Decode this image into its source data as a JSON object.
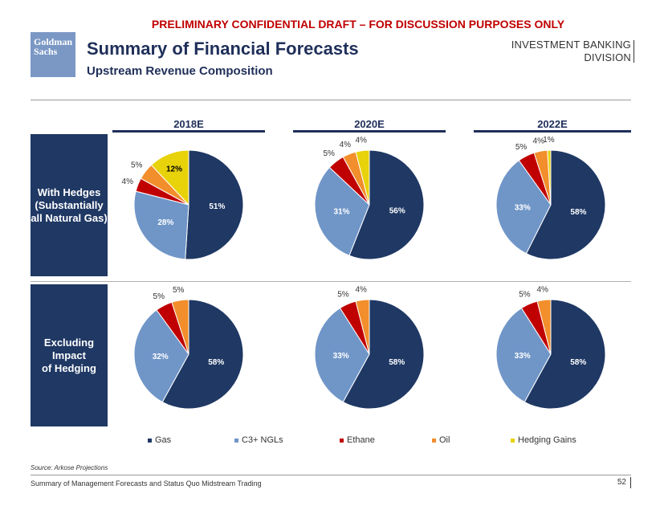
{
  "header": {
    "draft_notice": "PRELIMINARY CONFIDENTIAL DRAFT – FOR DISCUSSION PURPOSES ONLY",
    "logo_line1": "Goldman",
    "logo_line2": "Sachs",
    "title": "Summary of Financial Forecasts",
    "subtitle": "Upstream Revenue Composition",
    "division_line1": "INVESTMENT BANKING",
    "division_line2": "DIVISION"
  },
  "rows": {
    "hedged_l1": "With Hedges",
    "hedged_l2": "(Substantially",
    "hedged_l3": "all Natural Gas)",
    "unhedged_l1": "Excluding",
    "unhedged_l2": "Impact",
    "unhedged_l3": "of Hedging"
  },
  "colors": {
    "Gas": "#1f3864",
    "C3+ NGLs": "#7096c8",
    "Ethane": "#c00000",
    "Oil": "#f28e2b",
    "Hedging Gains": "#e8d20a"
  },
  "chart_data": {
    "type": "pie",
    "title": "Upstream Revenue Composition",
    "categories": [
      "Gas",
      "C3+ NGLs",
      "Ethane",
      "Oil",
      "Hedging Gains"
    ],
    "columns": [
      "2018E",
      "2020E",
      "2022E"
    ],
    "rows": [
      "With Hedges (Substantially all Natural Gas)",
      "Excluding Impact of Hedging"
    ],
    "legend_position": "bottom",
    "pies": [
      {
        "row": "hedged",
        "year": "2018E",
        "values": [
          51,
          28,
          4,
          5,
          12
        ],
        "labels": [
          "51%",
          "28%",
          "4%",
          "5%",
          "12%"
        ]
      },
      {
        "row": "hedged",
        "year": "2020E",
        "values": [
          56,
          31,
          5,
          4,
          4
        ],
        "labels": [
          "56%",
          "31%",
          "5%",
          "4%",
          "4%"
        ]
      },
      {
        "row": "hedged",
        "year": "2022E",
        "values": [
          58,
          33,
          5,
          4,
          1
        ],
        "labels": [
          "58%",
          "33%",
          "5%",
          "4%",
          "1%"
        ]
      },
      {
        "row": "unhedged",
        "year": "2018E",
        "values": [
          58,
          32,
          5,
          5,
          0
        ],
        "labels": [
          "58%",
          "32%",
          "5%",
          "5%",
          ""
        ]
      },
      {
        "row": "unhedged",
        "year": "2020E",
        "values": [
          58,
          33,
          5,
          4,
          0
        ],
        "labels": [
          "58%",
          "33%",
          "5%",
          "4%",
          ""
        ]
      },
      {
        "row": "unhedged",
        "year": "2022E",
        "values": [
          58,
          33,
          5,
          4,
          0
        ],
        "labels": [
          "58%",
          "33%",
          "5%",
          "4%",
          ""
        ]
      }
    ]
  },
  "footer": {
    "source": "Source: Arkose Projections",
    "text": "Summary of Management Forecasts and Status Quo Midstream Trading",
    "page": "52"
  }
}
